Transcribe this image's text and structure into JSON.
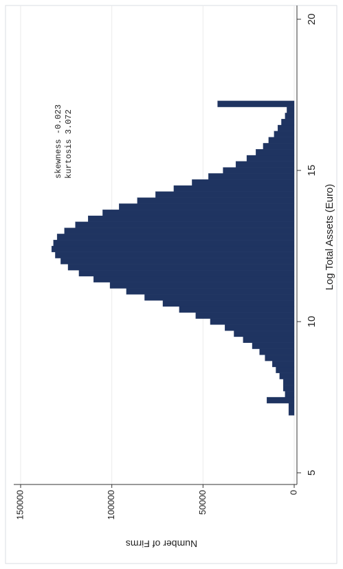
{
  "chart_data": {
    "type": "histogram",
    "x_label": "Log Total Assets (Euro)",
    "y_label": "Number of Firms",
    "annotations": [
      "skewness -0.023",
      "kurtosis 3.072"
    ],
    "color": "#1f3461",
    "bins": [
      6.9,
      7.1,
      7.3,
      7.5,
      7.7,
      7.9,
      8.1,
      8.3,
      8.5,
      8.7,
      8.9,
      9.1,
      9.3,
      9.5,
      9.7,
      9.9,
      10.1,
      10.3,
      10.5,
      10.7,
      10.9,
      11.1,
      11.3,
      11.5,
      11.7,
      11.9,
      12.1,
      12.3,
      12.5,
      12.7,
      12.9,
      13.1,
      13.3,
      13.5,
      13.7,
      13.9,
      14.1,
      14.3,
      14.5,
      14.7,
      14.9,
      15.1,
      15.3,
      15.5,
      15.7,
      15.9,
      16.1,
      16.3,
      16.5,
      16.7,
      16.9,
      17.1,
      17.3
    ],
    "values": [
      3000,
      3000,
      15000,
      5000,
      6000,
      6000,
      8000,
      10000,
      12000,
      16000,
      19000,
      23000,
      28000,
      33000,
      38000,
      46000,
      54000,
      63000,
      72000,
      82000,
      92000,
      101000,
      110000,
      118000,
      124000,
      128000,
      131000,
      133000,
      132000,
      130000,
      126000,
      120000,
      113000,
      105000,
      96000,
      86000,
      76000,
      66000,
      56000,
      47000,
      39000,
      32000,
      26000,
      21000,
      17000,
      14000,
      11000,
      9000,
      7000,
      5000,
      4000,
      42000
    ],
    "xlim": [
      5,
      20
    ],
    "xticks": [
      5,
      10,
      15,
      20
    ],
    "ylim": [
      0,
      150000
    ],
    "yticks": [
      0,
      50000,
      100000,
      150000
    ],
    "grid": true
  }
}
